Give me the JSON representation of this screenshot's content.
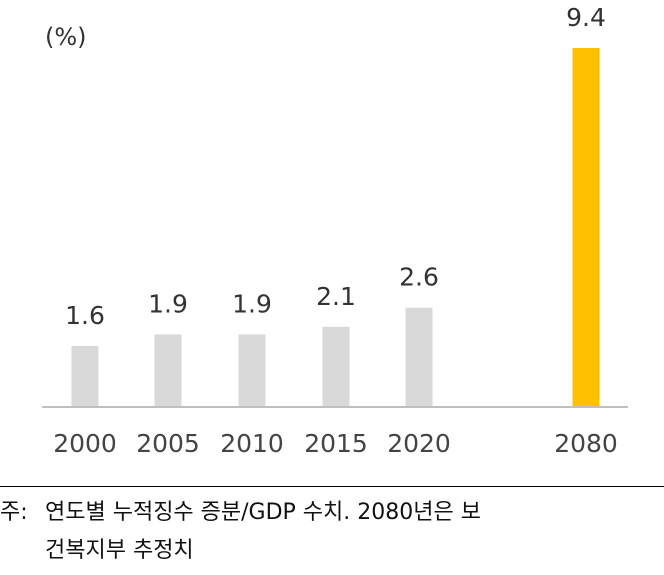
{
  "chart_data": {
    "type": "bar",
    "unit_label": "(%)",
    "categories": [
      "2000",
      "2005",
      "2010",
      "2015",
      "2020",
      "2080"
    ],
    "values": [
      1.6,
      1.9,
      1.9,
      2.1,
      2.6,
      9.4
    ],
    "value_labels": [
      "1.6",
      "1.9",
      "1.9",
      "2.1",
      "2.6",
      "9.4"
    ],
    "colors": [
      "#d9d9d9",
      "#d9d9d9",
      "#d9d9d9",
      "#d9d9d9",
      "#d9d9d9",
      "#ffc000"
    ],
    "axis_color": "#bfbfbf",
    "title": "",
    "xlabel": "",
    "ylabel": "",
    "ylim": [
      0,
      9.4
    ],
    "grid": false,
    "legend": "none"
  },
  "note": {
    "prefix": "주:",
    "line1": "연도별 누적징수 증분/GDP 수치. 2080년은 보",
    "line2": "건복지부 추정치"
  }
}
